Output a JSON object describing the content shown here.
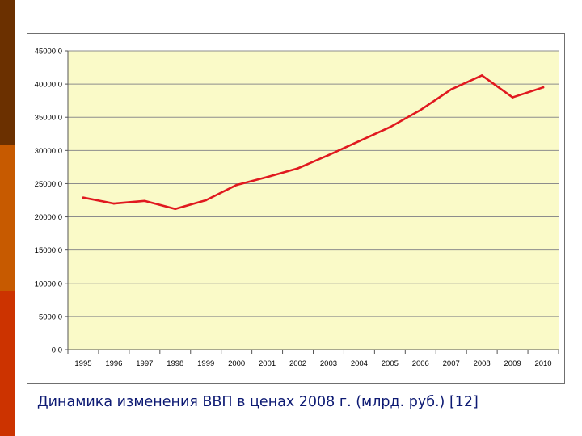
{
  "theme": {
    "bar_colors": [
      "#6b3000",
      "#c75a00",
      "#cc3300"
    ],
    "plot_background": "#fafac8",
    "line_color": "#e0191f",
    "grid_color": "#8c8c8c",
    "caption_color": "#0d1a73"
  },
  "caption": "Динамика изменения ВВП в ценах 2008 г. (млрд. руб.) [12]",
  "chart_data": {
    "type": "line",
    "title": "",
    "xlabel": "",
    "ylabel": "",
    "x": [
      "1995",
      "1996",
      "1997",
      "1998",
      "1999",
      "2000",
      "2001",
      "2002",
      "2003",
      "2004",
      "2005",
      "2006",
      "2007",
      "2008",
      "2009",
      "2010"
    ],
    "y_ticks": [
      "0,0",
      "5000,0",
      "10000,0",
      "15000,0",
      "20000,0",
      "25000,0",
      "30000,0",
      "35000,0",
      "40000,0",
      "45000,0"
    ],
    "ylim": [
      0,
      45000
    ],
    "grid": true,
    "legend": "none",
    "series": [
      {
        "values": [
          22900,
          22000,
          22400,
          21200,
          22500,
          24800,
          26000,
          27300,
          29300,
          31400,
          33500,
          36100,
          39200,
          41300,
          38000,
          39500
        ]
      }
    ]
  }
}
